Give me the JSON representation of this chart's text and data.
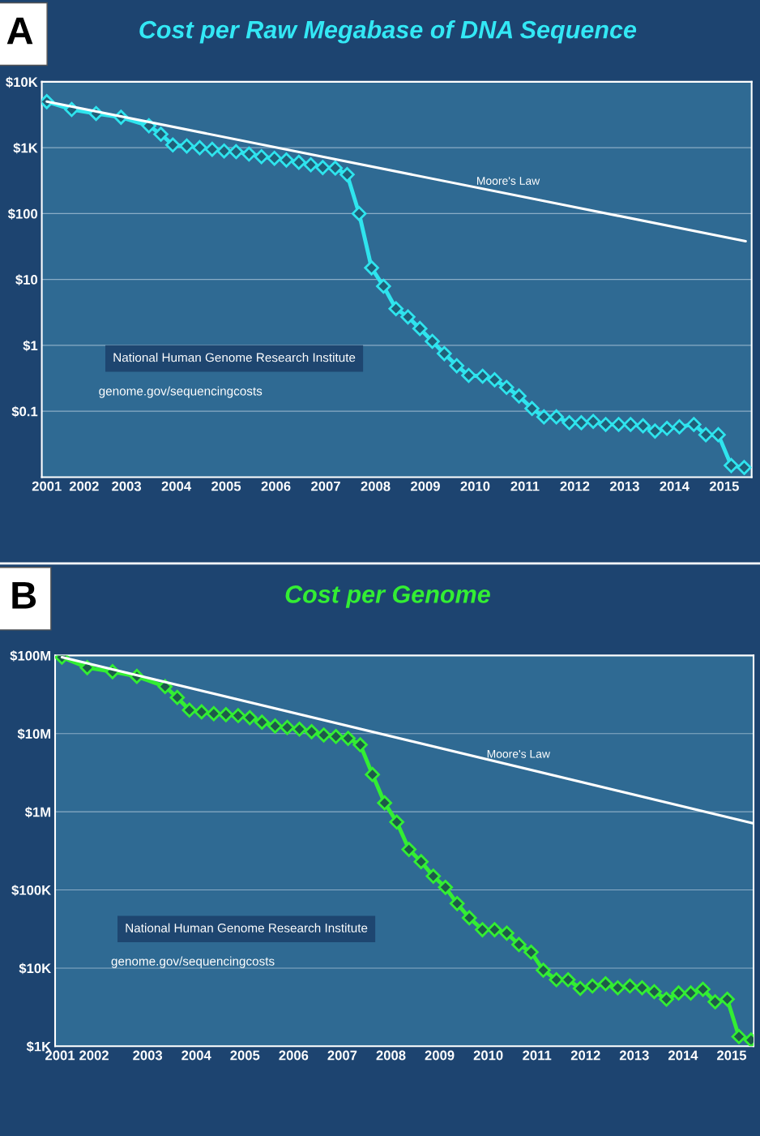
{
  "chart_data": [
    {
      "type": "line",
      "title": "Cost per Raw Megabase of DNA Sequence",
      "log": "y",
      "grid": "y",
      "legend": false,
      "xlim": [
        2001.3,
        2015.55
      ],
      "ylim": [
        0.01,
        10000
      ],
      "xticks": [
        {
          "value": 2001.4,
          "label": "2001"
        },
        {
          "value": 2002.15,
          "label": "2002"
        },
        2003,
        2004,
        2005,
        2006,
        2007,
        2008,
        2009,
        2010,
        2011,
        2012,
        2013,
        2014,
        2015
      ],
      "yticks": [
        {
          "value": 0.1,
          "label": "$0.1"
        },
        {
          "value": 1,
          "label": "$1"
        },
        {
          "value": 10,
          "label": "$10"
        },
        {
          "value": 100,
          "label": "$100"
        },
        {
          "value": 1000,
          "label": "$1K"
        },
        {
          "value": 10000,
          "label": "$10K"
        }
      ],
      "annotations": [
        "A",
        "National Human Genome Research Institute",
        "genome.gov/sequencingcosts"
      ],
      "series": [
        {
          "color": "#2fe4ee",
          "marker": "diamond",
          "x": [
            2001.4,
            2001.9,
            2002.39,
            2002.89,
            2003.45,
            2003.69,
            2003.93,
            2004.21,
            2004.47,
            2004.72,
            2004.96,
            2005.2,
            2005.46,
            2005.71,
            2005.97,
            2006.21,
            2006.46,
            2006.7,
            2006.94,
            2007.19,
            2007.43,
            2007.67,
            2007.92,
            2008.16,
            2008.41,
            2008.65,
            2008.89,
            2009.14,
            2009.38,
            2009.63,
            2009.87,
            2010.15,
            2010.39,
            2010.63,
            2010.88,
            2011.14,
            2011.38,
            2011.63,
            2011.89,
            2012.13,
            2012.37,
            2012.62,
            2012.88,
            2013.12,
            2013.37,
            2013.61,
            2013.85,
            2014.1,
            2014.39,
            2014.63,
            2014.88,
            2015.14,
            2015.4
          ],
          "values": [
            5000,
            3800,
            3300,
            2900,
            2150,
            1600,
            1100,
            1060,
            1000,
            945,
            890,
            870,
            800,
            730,
            690,
            650,
            600,
            550,
            500,
            490,
            390,
            100,
            15,
            7.9,
            3.6,
            2.7,
            1.8,
            1.15,
            0.75,
            0.49,
            0.35,
            0.34,
            0.3,
            0.23,
            0.17,
            0.11,
            0.082,
            0.082,
            0.067,
            0.067,
            0.07,
            0.063,
            0.063,
            0.063,
            0.06,
            0.05,
            0.055,
            0.058,
            0.063,
            0.044,
            0.044,
            0.015,
            0.014
          ]
        },
        {
          "name": "Moore's Law",
          "color": "#ffffff",
          "marker": "none",
          "x": [
            2001.4,
            2015.43
          ],
          "values": [
            5000,
            38
          ]
        }
      ]
    },
    {
      "type": "line",
      "title": "Cost per Genome",
      "log": "y",
      "grid": "y",
      "legend": false,
      "xlim": [
        2001.1,
        2015.45
      ],
      "ylim": [
        1000,
        100000000
      ],
      "xticks": [
        {
          "value": 2001.2,
          "label": "2001"
        },
        {
          "value": 2001.9,
          "label": "2002"
        },
        2003,
        2004,
        2005,
        2006,
        2007,
        2008,
        2009,
        2010,
        2011,
        2012,
        2013,
        2014,
        2015
      ],
      "yticks": [
        {
          "value": 1000,
          "label": "$1K"
        },
        {
          "value": 10000,
          "label": "$10K"
        },
        {
          "value": 100000,
          "label": "$100K"
        },
        {
          "value": 1000000,
          "label": "$1M"
        },
        {
          "value": 10000000,
          "label": "$10M"
        },
        {
          "value": 100000000,
          "label": "$100M"
        }
      ],
      "annotations": [
        "B",
        "National Human Genome Research Institute",
        "genome.gov/sequencingcosts"
      ],
      "series": [
        {
          "color": "#33ee33",
          "marker": "diamond",
          "x": [
            2001.24,
            2001.76,
            2002.28,
            2002.78,
            2003.36,
            2003.61,
            2003.86,
            2004.11,
            2004.36,
            2004.61,
            2004.86,
            2005.1,
            2005.35,
            2005.62,
            2005.87,
            2006.12,
            2006.37,
            2006.62,
            2006.87,
            2007.12,
            2007.37,
            2007.62,
            2007.87,
            2008.12,
            2008.37,
            2008.62,
            2008.87,
            2009.12,
            2009.36,
            2009.61,
            2009.88,
            2010.13,
            2010.38,
            2010.63,
            2010.88,
            2011.13,
            2011.4,
            2011.64,
            2011.89,
            2012.14,
            2012.41,
            2012.66,
            2012.91,
            2013.16,
            2013.41,
            2013.66,
            2013.91,
            2014.16,
            2014.41,
            2014.66,
            2014.91,
            2015.15,
            2015.4
          ],
          "values": [
            95000000,
            70000000,
            62000000,
            54000000,
            40000000,
            29000000,
            20000000,
            19000000,
            18000000,
            17500000,
            17000000,
            16000000,
            14000000,
            12500000,
            12000000,
            11400000,
            10600000,
            9600000,
            9200000,
            8700000,
            7200000,
            3000000,
            1300000,
            740000,
            330000,
            230000,
            150000,
            108000,
            67000,
            44000,
            31000,
            31000,
            28000,
            20000,
            16000,
            9400,
            7100,
            7100,
            5500,
            5900,
            6300,
            5600,
            5900,
            5600,
            5000,
            4000,
            4800,
            4800,
            5350,
            3700,
            4000,
            1330,
            1200
          ]
        },
        {
          "name": "Moore's Law",
          "color": "#ffffff",
          "marker": "none",
          "x": [
            2001.24,
            2015.45
          ],
          "values": [
            95000000,
            710000
          ]
        }
      ]
    }
  ]
}
